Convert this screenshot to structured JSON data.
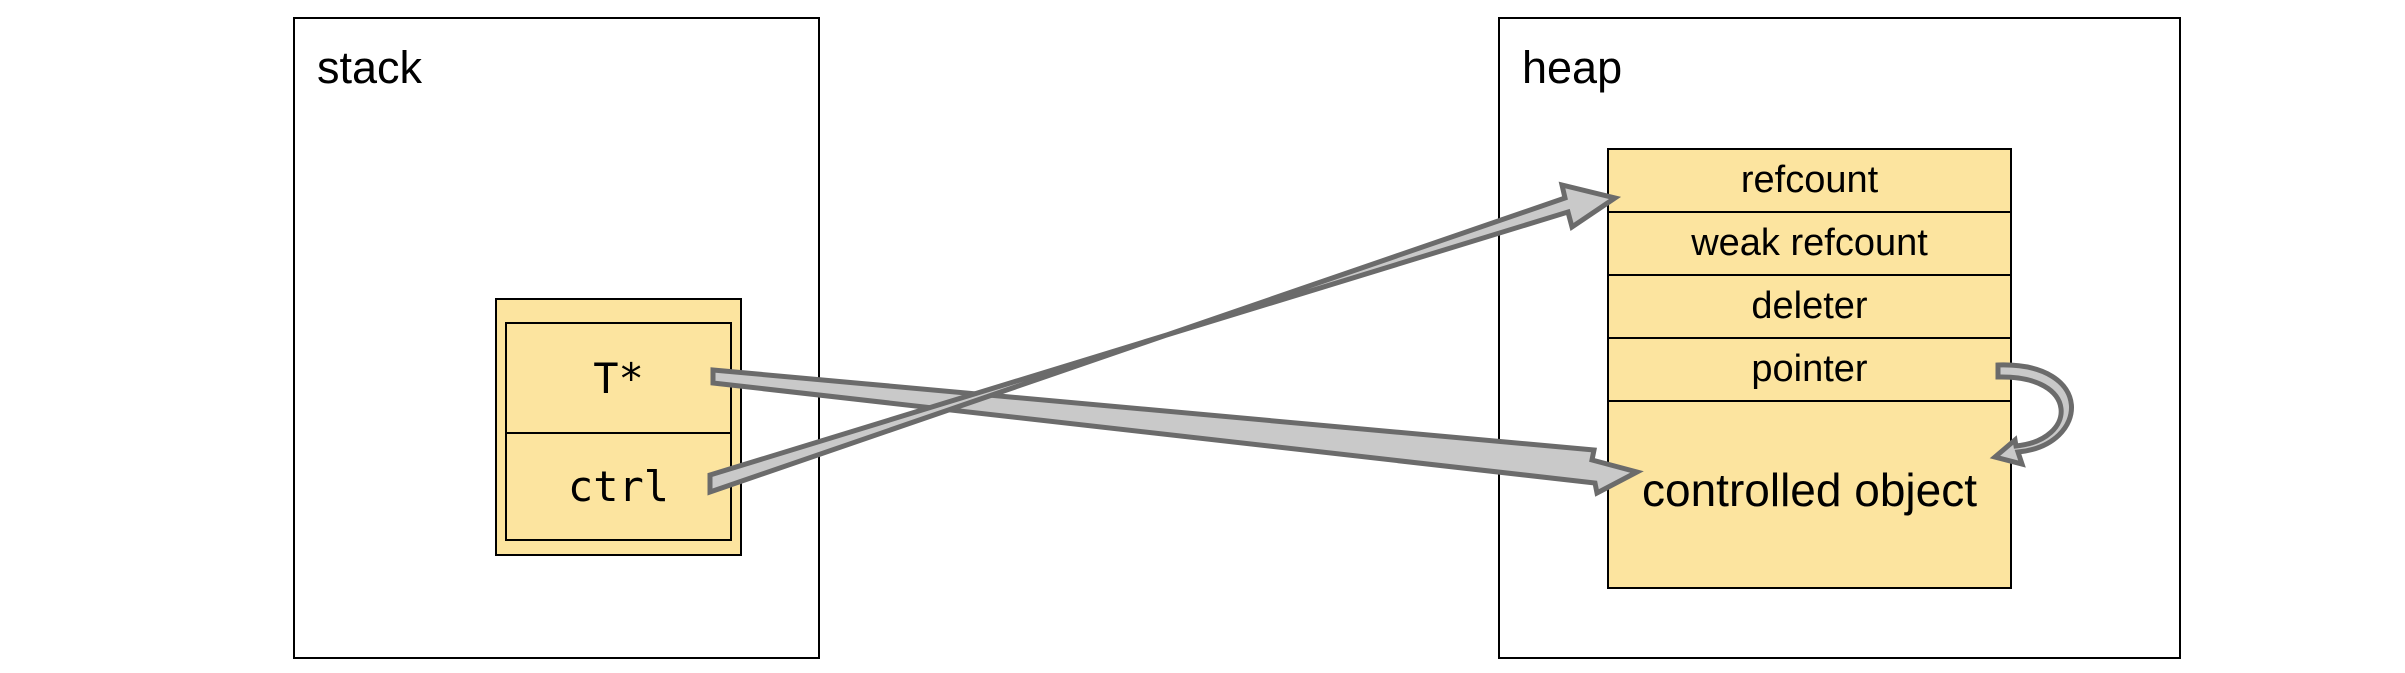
{
  "stack": {
    "title": "stack",
    "pointer": {
      "field_ptr": "T*",
      "field_ctrl": "ctrl"
    }
  },
  "heap": {
    "title": "heap",
    "control_block": {
      "rows": [
        "refcount",
        "weak refcount",
        "deleter",
        "pointer"
      ],
      "object": "controlled object"
    }
  },
  "colors": {
    "block_fill": "#fce49f",
    "arrow_fill": "#c9c9c9",
    "arrow_stroke": "#6b6b6b",
    "border": "#000000"
  }
}
